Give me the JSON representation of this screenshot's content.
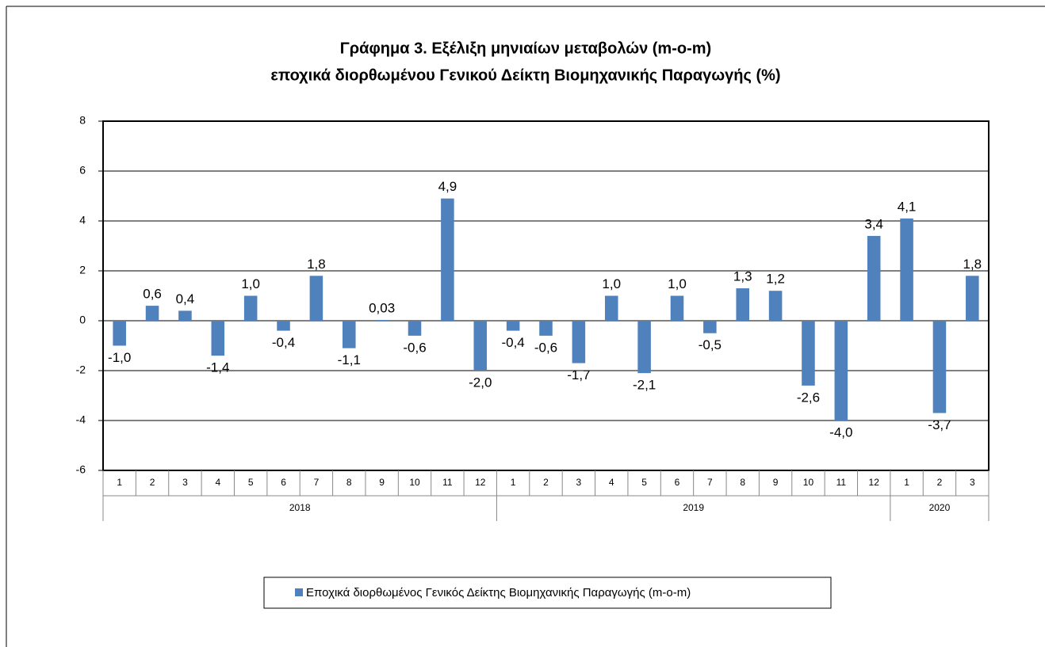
{
  "chart_data": {
    "type": "bar",
    "title": "Γράφημα 3. Εξέλιξη μηνιαίων μεταβολών (m-o-m)",
    "subtitle": "εποχικά διορθωμένου Γενικού Δείκτη Βιομηχανικής Παραγωγής (%)",
    "groups": [
      {
        "name": "2018",
        "categories": [
          "1",
          "2",
          "3",
          "4",
          "5",
          "6",
          "7",
          "8",
          "9",
          "10",
          "11",
          "12"
        ]
      },
      {
        "name": "2019",
        "categories": [
          "1",
          "2",
          "3",
          "4",
          "5",
          "6",
          "7",
          "8",
          "9",
          "10",
          "11",
          "12"
        ]
      },
      {
        "name": "2020",
        "categories": [
          "1",
          "2",
          "3"
        ]
      }
    ],
    "series": [
      {
        "name": "Εποχικά διορθωμένος Γενικός Δείκτης Βιομηχανικής Παραγωγής (m-o-m)",
        "color": "#4f81bd",
        "values": [
          -1.0,
          0.6,
          0.4,
          -1.4,
          1.0,
          -0.4,
          1.8,
          -1.1,
          0.03,
          -0.6,
          4.9,
          -2.0,
          -0.4,
          -0.6,
          -1.7,
          1.0,
          -2.1,
          1.0,
          -0.5,
          1.3,
          1.2,
          -2.6,
          -4.0,
          3.4,
          4.1,
          -3.7,
          1.8
        ],
        "value_labels": [
          "-1,0",
          "0,6",
          "0,4",
          "-1,4",
          "1,0",
          "-0,4",
          "1,8",
          "-1,1",
          "0,03",
          "-0,6",
          "4,9",
          "-2,0",
          "-0,4",
          "-0,6",
          "-1,7",
          "1,0",
          "-2,1",
          "1,0",
          "-0,5",
          "1,3",
          "1,2",
          "-2,6",
          "-4,0",
          "3,4",
          "4,1",
          "-3,7",
          "1,8"
        ]
      }
    ],
    "ylim": [
      -6,
      8
    ],
    "yticks": [
      -6,
      -4,
      -2,
      0,
      2,
      4,
      6,
      8
    ],
    "grid": true,
    "legend": "bottom"
  }
}
